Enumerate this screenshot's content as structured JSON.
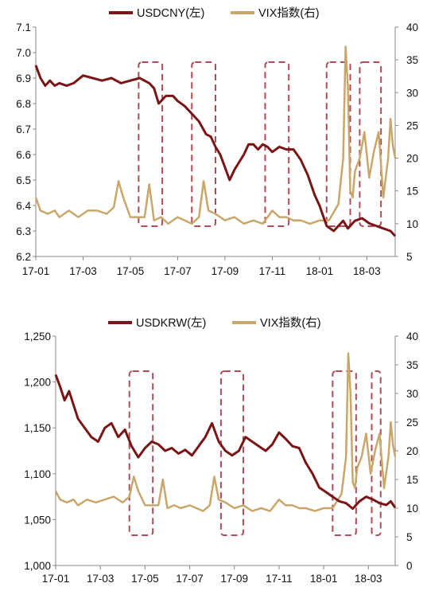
{
  "charts": [
    {
      "id": "top",
      "type": "line",
      "legend": [
        {
          "label": "USDCNY(左)",
          "color": "#7b1416"
        },
        {
          "label": "VIX指数(右)",
          "color": "#c9a66a"
        }
      ],
      "x_ticks": [
        "17-01",
        "17-03",
        "17-05",
        "17-07",
        "17-09",
        "17-11",
        "18-01",
        "18-03"
      ],
      "y_left_ticks": [
        "7.1",
        "7.0",
        "6.9",
        "6.8",
        "6.7",
        "6.6",
        "6.5",
        "6.4",
        "6.3",
        "6.2"
      ],
      "y_right_ticks": [
        "40",
        "35",
        "30",
        "25",
        "20",
        "15",
        "10",
        "5"
      ],
      "y_left_range": [
        6.2,
        7.1
      ],
      "y_right_range": [
        5,
        40
      ],
      "x_range_months": [
        0,
        15.2
      ],
      "series_left": {
        "name": "USDCNY(左)",
        "color": "#7b1416",
        "x": [
          0,
          0.2,
          0.4,
          0.6,
          0.8,
          1.0,
          1.3,
          1.6,
          2.0,
          2.4,
          2.8,
          3.2,
          3.6,
          4.0,
          4.4,
          4.8,
          5.0,
          5.2,
          5.5,
          5.8,
          6.0,
          6.3,
          6.6,
          6.9,
          7.2,
          7.4,
          7.6,
          7.8,
          8.0,
          8.2,
          8.4,
          8.6,
          8.8,
          9.0,
          9.2,
          9.4,
          9.6,
          9.8,
          10.0,
          10.3,
          10.6,
          10.9,
          11.2,
          11.5,
          11.8,
          12.0,
          12.3,
          12.6,
          12.9,
          13.0,
          13.2,
          13.5,
          13.8,
          14.1,
          14.4,
          14.7,
          15.0,
          15.2
        ],
        "y": [
          6.95,
          6.9,
          6.87,
          6.89,
          6.87,
          6.88,
          6.87,
          6.88,
          6.91,
          6.9,
          6.89,
          6.9,
          6.88,
          6.89,
          6.9,
          6.88,
          6.86,
          6.8,
          6.83,
          6.83,
          6.81,
          6.79,
          6.76,
          6.73,
          6.68,
          6.67,
          6.63,
          6.6,
          6.55,
          6.5,
          6.54,
          6.57,
          6.6,
          6.64,
          6.64,
          6.62,
          6.64,
          6.63,
          6.61,
          6.63,
          6.62,
          6.62,
          6.58,
          6.52,
          6.44,
          6.4,
          6.32,
          6.3,
          6.33,
          6.34,
          6.31,
          6.34,
          6.35,
          6.33,
          6.32,
          6.31,
          6.3,
          6.28
        ]
      },
      "series_right": {
        "name": "VIX指数(右)",
        "color": "#c9a66a",
        "x": [
          0,
          0.2,
          0.5,
          0.8,
          1.0,
          1.4,
          1.8,
          2.2,
          2.6,
          3.0,
          3.3,
          3.5,
          3.7,
          4.0,
          4.3,
          4.6,
          4.8,
          5.0,
          5.3,
          5.6,
          6.0,
          6.3,
          6.6,
          6.9,
          7.1,
          7.3,
          7.6,
          8.0,
          8.4,
          8.8,
          9.2,
          9.6,
          10.0,
          10.3,
          10.6,
          10.9,
          11.2,
          11.6,
          12.0,
          12.4,
          12.8,
          13.0,
          13.1,
          13.2,
          13.3,
          13.4,
          13.5,
          13.7,
          13.9,
          14.1,
          14.3,
          14.5,
          14.7,
          14.9,
          15.0,
          15.1,
          15.2
        ],
        "y": [
          14,
          12,
          11.5,
          12,
          11,
          12,
          11,
          12,
          12,
          11.5,
          12.5,
          16.5,
          14,
          11,
          11,
          11,
          16,
          10.5,
          11,
          10,
          11,
          10.5,
          10,
          11,
          16.5,
          12,
          11.5,
          10.5,
          11,
          10,
          10.5,
          10,
          12,
          11,
          11,
          10.5,
          10.5,
          10,
          10.5,
          10.5,
          13,
          20,
          37,
          31,
          15,
          14,
          18,
          20,
          24,
          17,
          21,
          24,
          14,
          20,
          26,
          22,
          20
        ]
      },
      "boxes_months": [
        [
          4.35,
          5.35
        ],
        [
          6.6,
          7.6
        ],
        [
          9.7,
          10.7
        ],
        [
          12.3,
          13.3
        ],
        [
          13.7,
          14.6
        ]
      ]
    },
    {
      "id": "bottom",
      "type": "line",
      "legend": [
        {
          "label": "USDKRW(左)",
          "color": "#7b1416"
        },
        {
          "label": "VIX指数(右)",
          "color": "#c9a66a"
        }
      ],
      "x_ticks": [
        "17-01",
        "17-03",
        "17-05",
        "17-07",
        "17-09",
        "17-11",
        "18-01",
        "18-03"
      ],
      "y_left_ticks": [
        "1,250",
        "1,200",
        "1,150",
        "1,100",
        "1,050",
        "1,000"
      ],
      "y_right_ticks": [
        "40",
        "35",
        "30",
        "25",
        "20",
        "15",
        "10",
        "5",
        "0"
      ],
      "y_left_range": [
        1000,
        1250
      ],
      "y_right_range": [
        0,
        40
      ],
      "x_range_months": [
        0,
        15.2
      ],
      "series_left": {
        "name": "USDKRW(左)",
        "color": "#7b1416",
        "x": [
          0,
          0.2,
          0.4,
          0.6,
          0.8,
          1.0,
          1.3,
          1.6,
          1.9,
          2.2,
          2.5,
          2.8,
          3.1,
          3.4,
          3.7,
          4.0,
          4.3,
          4.6,
          4.9,
          5.2,
          5.5,
          5.8,
          6.1,
          6.4,
          6.7,
          7.0,
          7.3,
          7.6,
          7.9,
          8.2,
          8.5,
          8.8,
          9.1,
          9.4,
          9.7,
          10.0,
          10.3,
          10.6,
          10.9,
          11.2,
          11.5,
          11.8,
          12.1,
          12.4,
          12.7,
          13.0,
          13.3,
          13.6,
          13.9,
          14.2,
          14.5,
          14.8,
          15.0,
          15.2
        ],
        "y": [
          1208,
          1195,
          1180,
          1190,
          1175,
          1160,
          1150,
          1140,
          1135,
          1150,
          1155,
          1140,
          1148,
          1130,
          1118,
          1128,
          1135,
          1132,
          1125,
          1128,
          1122,
          1126,
          1120,
          1130,
          1140,
          1155,
          1135,
          1125,
          1120,
          1125,
          1140,
          1135,
          1130,
          1125,
          1132,
          1145,
          1138,
          1130,
          1128,
          1112,
          1100,
          1085,
          1080,
          1075,
          1070,
          1068,
          1062,
          1070,
          1075,
          1072,
          1068,
          1066,
          1070,
          1063
        ]
      },
      "series_right": {
        "name": "VIX指数(右)",
        "color": "#c9a66a",
        "x": [
          0,
          0.2,
          0.5,
          0.8,
          1.0,
          1.4,
          1.8,
          2.2,
          2.6,
          3.0,
          3.3,
          3.5,
          3.7,
          4.0,
          4.3,
          4.6,
          4.8,
          5.0,
          5.3,
          5.6,
          6.0,
          6.3,
          6.6,
          6.9,
          7.1,
          7.3,
          7.6,
          8.0,
          8.4,
          8.8,
          9.2,
          9.6,
          10.0,
          10.3,
          10.6,
          10.9,
          11.2,
          11.6,
          12.0,
          12.4,
          12.8,
          13.0,
          13.1,
          13.2,
          13.3,
          13.4,
          13.5,
          13.7,
          13.9,
          14.1,
          14.3,
          14.5,
          14.7,
          14.9,
          15.0,
          15.1,
          15.2
        ],
        "y": [
          13,
          11.5,
          11,
          11.5,
          10.5,
          11.5,
          11,
          11.5,
          12,
          11,
          12,
          15.5,
          13,
          10.5,
          10.5,
          10.5,
          15,
          10,
          10.5,
          10,
          10.5,
          10,
          9.5,
          10.5,
          15.5,
          11.5,
          11,
          10,
          10.5,
          9.5,
          10,
          9.5,
          11.5,
          10.5,
          10.5,
          10,
          10,
          9.5,
          10,
          10,
          12.5,
          19,
          37,
          30,
          14.5,
          13.5,
          17,
          19,
          23,
          16,
          20,
          23,
          13.5,
          19,
          25,
          21,
          19
        ]
      },
      "boxes_months": [
        [
          3.3,
          4.35
        ],
        [
          7.4,
          8.4
        ],
        [
          12.4,
          13.45
        ],
        [
          14.15,
          14.55
        ]
      ]
    }
  ]
}
